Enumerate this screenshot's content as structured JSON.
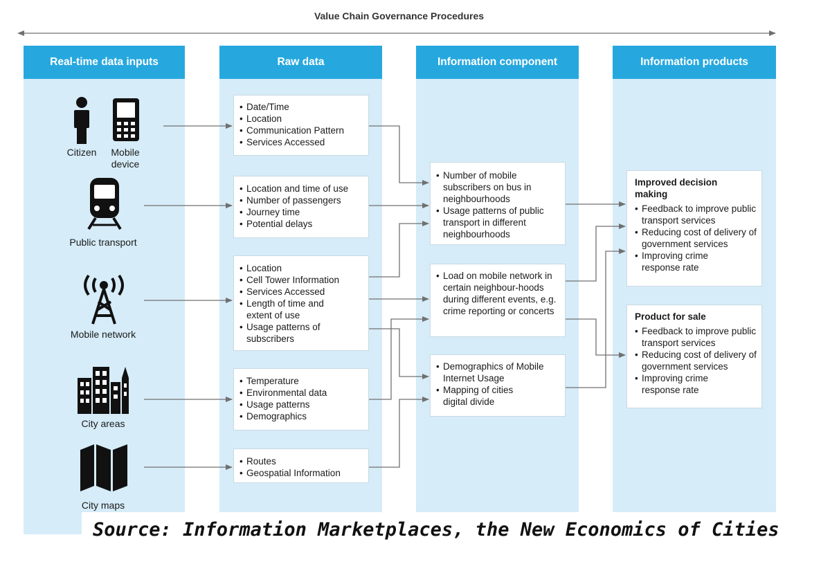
{
  "title": "Value Chain Governance Procedures",
  "columns": [
    "Real-time data inputs",
    "Raw data",
    "Information component",
    "Information products"
  ],
  "inputs": {
    "citizen": "Citizen",
    "mobile_device": "Mobile device",
    "public_transport": "Public transport",
    "mobile_network": "Mobile network",
    "city_areas": "City areas",
    "city_maps": "City maps"
  },
  "raw_data": [
    [
      "Date/Time",
      "Location",
      "Communication Pattern",
      "Services Accessed"
    ],
    [
      "Location and time of use",
      "Number of passengers",
      "Journey time",
      "Potential delays"
    ],
    [
      "Location",
      "Cell Tower Information",
      "Services Accessed",
      "Length of time and extent of use",
      "Usage patterns of subscribers"
    ],
    [
      "Temperature",
      "Environmental data",
      "Usage patterns",
      "Demographics"
    ],
    [
      "Routes",
      "Geospatial Information"
    ]
  ],
  "info_components": [
    [
      "Number of mobile subscribers on bus in neighbourhoods",
      "Usage patterns of public transport in different neighbourhoods"
    ],
    [
      "Load on mobile network in certain neighbour-hoods during different events, e.g. crime reporting or concerts"
    ],
    [
      "Demographics of Mobile Internet Usage",
      "Mapping of cities digital divide"
    ]
  ],
  "products": [
    {
      "title": "Improved decision making",
      "items": [
        "Feedback to improve public transport services",
        "Reducing cost of delivery of government services",
        "Improving crime response rate"
      ]
    },
    {
      "title": "Product for sale",
      "items": [
        "Feedback to improve public transport services",
        "Reducing cost of delivery of government services",
        "Improving crime response rate"
      ]
    }
  ],
  "source": "Source: Information Marketplaces, the New Economics of Cities",
  "colors": {
    "header": "#26a8df",
    "column_bg": "#d6ecf8",
    "arrow": "#707070"
  },
  "icons": [
    "person-icon",
    "mobile-phone-icon",
    "train-icon",
    "cell-tower-icon",
    "city-buildings-icon",
    "map-icon"
  ]
}
